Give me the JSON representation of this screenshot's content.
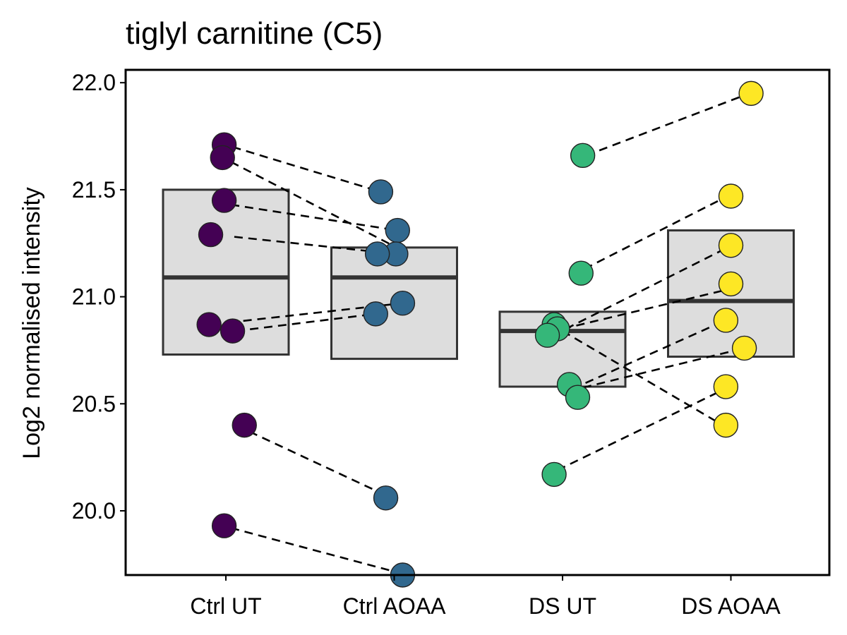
{
  "chart_data": {
    "type": "box-dot-paired",
    "title": "tiglyl carnitine (C5)",
    "xlabel": "",
    "ylabel": "Log2 normalised intensity",
    "ylim": [
      19.7,
      22.06
    ],
    "yticks": [
      "20.0",
      "20.5",
      "21.0",
      "21.5",
      "22.0"
    ],
    "grid": false,
    "categories": [
      "Ctrl UT",
      "Ctrl AOAA",
      "DS UT",
      "DS AOAA"
    ],
    "group_colors": [
      "#440154",
      "#31688E",
      "#35B779",
      "#FDE725"
    ],
    "box_fill": "#DDDDDD",
    "box_stroke": "#333333",
    "boxes": [
      {
        "category": "Ctrl UT",
        "q1": 20.73,
        "median": 21.09,
        "q3": 21.5
      },
      {
        "category": "Ctrl AOAA",
        "q1": 20.71,
        "median": 21.09,
        "q3": 21.23
      },
      {
        "category": "DS UT",
        "q1": 20.58,
        "median": 20.84,
        "q3": 20.93
      },
      {
        "category": "DS AOAA",
        "q1": 20.72,
        "median": 20.98,
        "q3": 21.31
      }
    ],
    "points": [
      {
        "category": "Ctrl UT",
        "jitter": -0.01,
        "value": 21.71
      },
      {
        "category": "Ctrl UT",
        "jitter": -0.02,
        "value": 21.65
      },
      {
        "category": "Ctrl UT",
        "jitter": -0.01,
        "value": 21.45
      },
      {
        "category": "Ctrl UT",
        "jitter": -0.09,
        "value": 21.29
      },
      {
        "category": "Ctrl UT",
        "jitter": -0.1,
        "value": 20.87
      },
      {
        "category": "Ctrl UT",
        "jitter": 0.04,
        "value": 20.84
      },
      {
        "category": "Ctrl UT",
        "jitter": 0.11,
        "value": 20.4
      },
      {
        "category": "Ctrl UT",
        "jitter": -0.01,
        "value": 19.93
      },
      {
        "category": "Ctrl AOAA",
        "jitter": -0.08,
        "value": 21.49
      },
      {
        "category": "Ctrl AOAA",
        "jitter": 0.02,
        "value": 21.31
      },
      {
        "category": "Ctrl AOAA",
        "jitter": 0.01,
        "value": 21.2
      },
      {
        "category": "Ctrl AOAA",
        "jitter": -0.1,
        "value": 21.2
      },
      {
        "category": "Ctrl AOAA",
        "jitter": 0.05,
        "value": 20.97
      },
      {
        "category": "Ctrl AOAA",
        "jitter": -0.11,
        "value": 20.92
      },
      {
        "category": "Ctrl AOAA",
        "jitter": -0.05,
        "value": 20.06
      },
      {
        "category": "Ctrl AOAA",
        "jitter": 0.05,
        "value": 19.7
      },
      {
        "category": "DS UT",
        "jitter": 0.12,
        "value": 21.66
      },
      {
        "category": "DS UT",
        "jitter": 0.11,
        "value": 21.11
      },
      {
        "category": "DS UT",
        "jitter": -0.05,
        "value": 20.87
      },
      {
        "category": "DS UT",
        "jitter": -0.03,
        "value": 20.85
      },
      {
        "category": "DS UT",
        "jitter": -0.09,
        "value": 20.82
      },
      {
        "category": "DS UT",
        "jitter": 0.04,
        "value": 20.59
      },
      {
        "category": "DS UT",
        "jitter": 0.09,
        "value": 20.53
      },
      {
        "category": "DS UT",
        "jitter": -0.05,
        "value": 20.17
      },
      {
        "category": "DS AOAA",
        "jitter": 0.12,
        "value": 21.95
      },
      {
        "category": "DS AOAA",
        "jitter": 0.0,
        "value": 21.47
      },
      {
        "category": "DS AOAA",
        "jitter": 0.0,
        "value": 21.24
      },
      {
        "category": "DS AOAA",
        "jitter": 0.0,
        "value": 21.06
      },
      {
        "category": "DS AOAA",
        "jitter": -0.03,
        "value": 20.89
      },
      {
        "category": "DS AOAA",
        "jitter": 0.08,
        "value": 20.76
      },
      {
        "category": "DS AOAA",
        "jitter": -0.03,
        "value": 20.58
      },
      {
        "category": "DS AOAA",
        "jitter": -0.03,
        "value": 20.4
      }
    ],
    "pairs": [
      {
        "from": {
          "category": "Ctrl UT",
          "jitter": 0.04,
          "value": 21.7
        },
        "to": {
          "category": "Ctrl AOAA",
          "jitter": -0.08,
          "value": 21.49
        }
      },
      {
        "from": {
          "category": "Ctrl UT",
          "jitter": 0.03,
          "value": 21.63
        },
        "to": {
          "category": "Ctrl AOAA",
          "jitter": -0.01,
          "value": 21.24
        }
      },
      {
        "from": {
          "category": "Ctrl UT",
          "jitter": 0.03,
          "value": 21.43
        },
        "to": {
          "category": "Ctrl AOAA",
          "jitter": 0.02,
          "value": 21.31
        }
      },
      {
        "from": {
          "category": "Ctrl UT",
          "jitter": 0.05,
          "value": 21.28
        },
        "to": {
          "category": "Ctrl AOAA",
          "jitter": 0.01,
          "value": 21.2
        }
      },
      {
        "from": {
          "category": "Ctrl UT",
          "jitter": 0.02,
          "value": 20.88
        },
        "to": {
          "category": "Ctrl AOAA",
          "jitter": 0.05,
          "value": 20.97
        }
      },
      {
        "from": {
          "category": "Ctrl UT",
          "jitter": 0.06,
          "value": 20.84
        },
        "to": {
          "category": "Ctrl AOAA",
          "jitter": -0.11,
          "value": 20.92
        }
      },
      {
        "from": {
          "category": "Ctrl UT",
          "jitter": 0.14,
          "value": 20.37
        },
        "to": {
          "category": "Ctrl AOAA",
          "jitter": -0.07,
          "value": 20.08
        }
      },
      {
        "from": {
          "category": "Ctrl UT",
          "jitter": 0.03,
          "value": 19.92
        },
        "to": {
          "category": "Ctrl AOAA",
          "jitter": 0.03,
          "value": 19.71
        }
      },
      {
        "from": {
          "category": "DS UT",
          "jitter": 0.14,
          "value": 21.66
        },
        "to": {
          "category": "DS AOAA",
          "jitter": 0.11,
          "value": 21.95
        }
      },
      {
        "from": {
          "category": "DS UT",
          "jitter": 0.13,
          "value": 21.13
        },
        "to": {
          "category": "DS AOAA",
          "jitter": -0.02,
          "value": 21.47
        }
      },
      {
        "from": {
          "category": "DS UT",
          "jitter": 0.02,
          "value": 20.85
        },
        "to": {
          "category": "DS AOAA",
          "jitter": -0.02,
          "value": 21.23
        }
      },
      {
        "from": {
          "category": "DS UT",
          "jitter": 0.0,
          "value": 20.85
        },
        "to": {
          "category": "DS AOAA",
          "jitter": -0.04,
          "value": 21.03
        }
      },
      {
        "from": {
          "category": "DS UT",
          "jitter": 0.0,
          "value": 20.84
        },
        "to": {
          "category": "DS AOAA",
          "jitter": -0.07,
          "value": 20.41
        }
      },
      {
        "from": {
          "category": "DS UT",
          "jitter": 0.06,
          "value": 20.57
        },
        "to": {
          "category": "DS AOAA",
          "jitter": -0.06,
          "value": 20.88
        }
      },
      {
        "from": {
          "category": "DS UT",
          "jitter": 0.04,
          "value": 20.56
        },
        "to": {
          "category": "DS AOAA",
          "jitter": 0.03,
          "value": 20.75
        }
      },
      {
        "from": {
          "category": "DS UT",
          "jitter": -0.03,
          "value": 20.19
        },
        "to": {
          "category": "DS AOAA",
          "jitter": -0.06,
          "value": 20.56
        }
      }
    ]
  }
}
